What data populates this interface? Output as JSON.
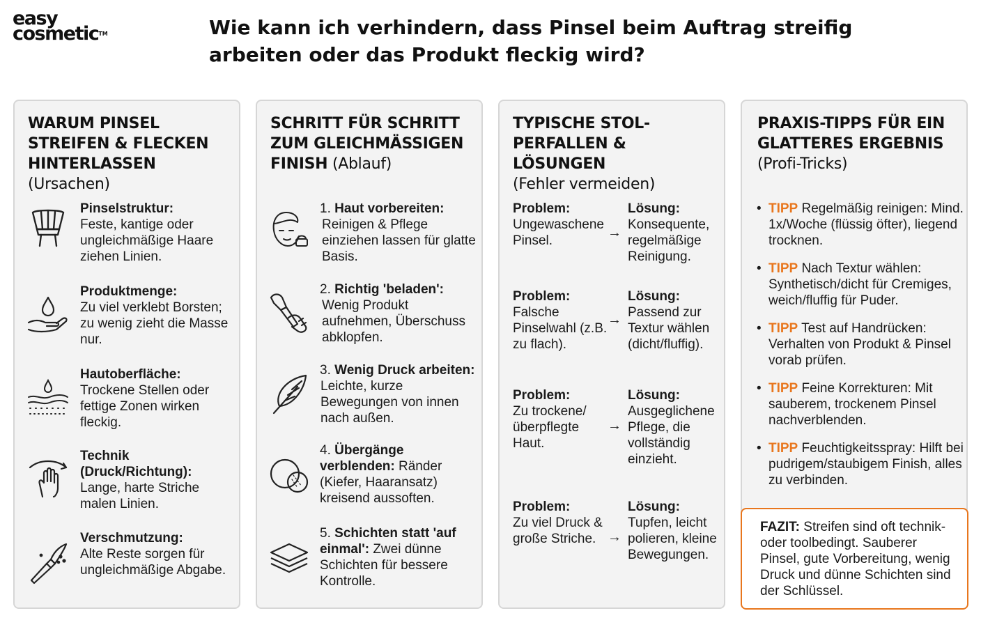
{
  "logo": {
    "line1": "easy",
    "line2": "cosmetic",
    "tm": "TM"
  },
  "headline": "Wie kann ich verhindern, dass Pinsel beim Auftrag streifig arbeiten oder das Produkt fleckig wird?",
  "panels": [
    {
      "title_line1": "WARUM PINSEL",
      "title_line2": "STREIFEN & FLECKEN",
      "title_line3": "HINTERLASSEN",
      "title_sub": "(Ursachen)",
      "items": [
        {
          "icon": "brush-bristles-icon",
          "title": "Pinselstruktur:",
          "text": "Feste, kantige oder ungleichmäßige Haare ziehen Linien."
        },
        {
          "icon": "drop-hand-icon",
          "title": "Produktmenge:",
          "text": "Zu viel verklebt Borsten; zu wenig zieht die Masse nur."
        },
        {
          "icon": "skin-surface-icon",
          "title": "Hautoberfläche:",
          "text": "Trockene Stellen oder fettige Zonen wirken fleckig."
        },
        {
          "icon": "hand-swipe-icon",
          "title": "Technik (Druck/Richtung):",
          "text": "Lange, harte Striche malen Linien."
        },
        {
          "icon": "dirty-brush-icon",
          "title": "Verschmutzung:",
          "text": "Alte Reste sorgen für ungleichmäßige Abgabe."
        }
      ]
    },
    {
      "title_line1": "SCHRITT FÜR SCHRITT",
      "title_line2": "ZUM GLEICHMÄSSIGEN",
      "title_line3": "FINISH",
      "title_sub": "(Ablauf)",
      "items": [
        {
          "icon": "face-cream-icon",
          "num": "1.",
          "title": "Haut vorbereiten:",
          "text": "Reinigen & Pflege einziehen lassen für glatte Basis."
        },
        {
          "icon": "brush-tap-icon",
          "num": "2.",
          "title": "Richtig 'beladen':",
          "text": "Wenig Produkt aufnehmen, Überschuss abklopfen."
        },
        {
          "icon": "feather-icon",
          "num": "3.",
          "title": "Wenig Druck arbeiten:",
          "text": "Leichte, kurze Bewegungen von innen nach außen."
        },
        {
          "icon": "blend-circles-icon",
          "num": "4.",
          "title": "Übergänge verblenden:",
          "text": "Ränder (Kiefer, Haaransatz) kreisend aussoften."
        },
        {
          "icon": "layers-icon",
          "num": "5.",
          "title": "Schichten statt 'auf einmal':",
          "text": "Zwei dünne Schichten für bessere Kontrolle."
        }
      ]
    },
    {
      "title_line1": "TYPISCHE STOL-",
      "title_line2": "PERFALLEN & LÖSUNGEN",
      "title_sub": "(Fehler vermeiden)",
      "rows": [
        {
          "problem_label": "Problem:",
          "problem": "Ungewaschene Pinsel.",
          "arrow": "→",
          "solution_label": "Lösung:",
          "solution": "Konsequente, regelmäßige Reinigung."
        },
        {
          "problem_label": "Problem:",
          "problem": "Falsche Pinselwahl (z.B. zu flach).",
          "arrow": "→",
          "solution_label": "Lösung:",
          "solution": "Passend zur Textur wählen (dicht/fluffig)."
        },
        {
          "problem_label": "Problem:",
          "problem": "Zu trockene/ überpflegte Haut.",
          "arrow": "→",
          "solution_label": "Lösung:",
          "solution": "Ausgeglichene Pflege, die vollständig einzieht."
        },
        {
          "problem_label": "Problem:",
          "problem": "Zu viel Druck & große Striche.",
          "arrow": "→",
          "solution_label": "Lösung:",
          "solution": "Tupfen, leicht polieren, kleine Bewegungen."
        }
      ]
    },
    {
      "title_line1": "PRAXIS-TIPPS FÜR EIN",
      "title_line2": "GLATTERES ERGEBNIS",
      "title_sub": "(Profi-Tricks)",
      "tips": [
        {
          "bullet": "•",
          "tag": "TIPP",
          "text": "Regelmäßig reinigen: Mind. 1x/Woche (flüssig öfter), liegend trocknen."
        },
        {
          "bullet": "•",
          "tag": "TIPP",
          "text": "Nach Textur wählen: Synthetisch/dicht für Cremiges, weich/fluffig für Puder."
        },
        {
          "bullet": "•",
          "tag": "TIPP",
          "text": "Test auf Handrücken: Verhalten von Produkt & Pinsel vorab prüfen."
        },
        {
          "bullet": "•",
          "tag": "TIPP",
          "text": "Feine Korrekturen: Mit sauberem, trockenem Pinsel nachverblenden."
        },
        {
          "bullet": "•",
          "tag": "TIPP",
          "text": "Feuchtigkeitsspray: Hilft bei pudrigem/staubigem Finish, alles zu verbinden."
        }
      ]
    }
  ],
  "fazit": {
    "label": "FAZIT:",
    "text": "Streifen sind oft technik- oder toolbedingt. Sauberer Pinsel, gute Vorbereitung, wenig Druck und dünne Schichten sind der Schlüssel."
  },
  "colors": {
    "accent": "#e8761d",
    "panel_bg": "#f3f3f3",
    "panel_border": "#d6d6d6"
  }
}
